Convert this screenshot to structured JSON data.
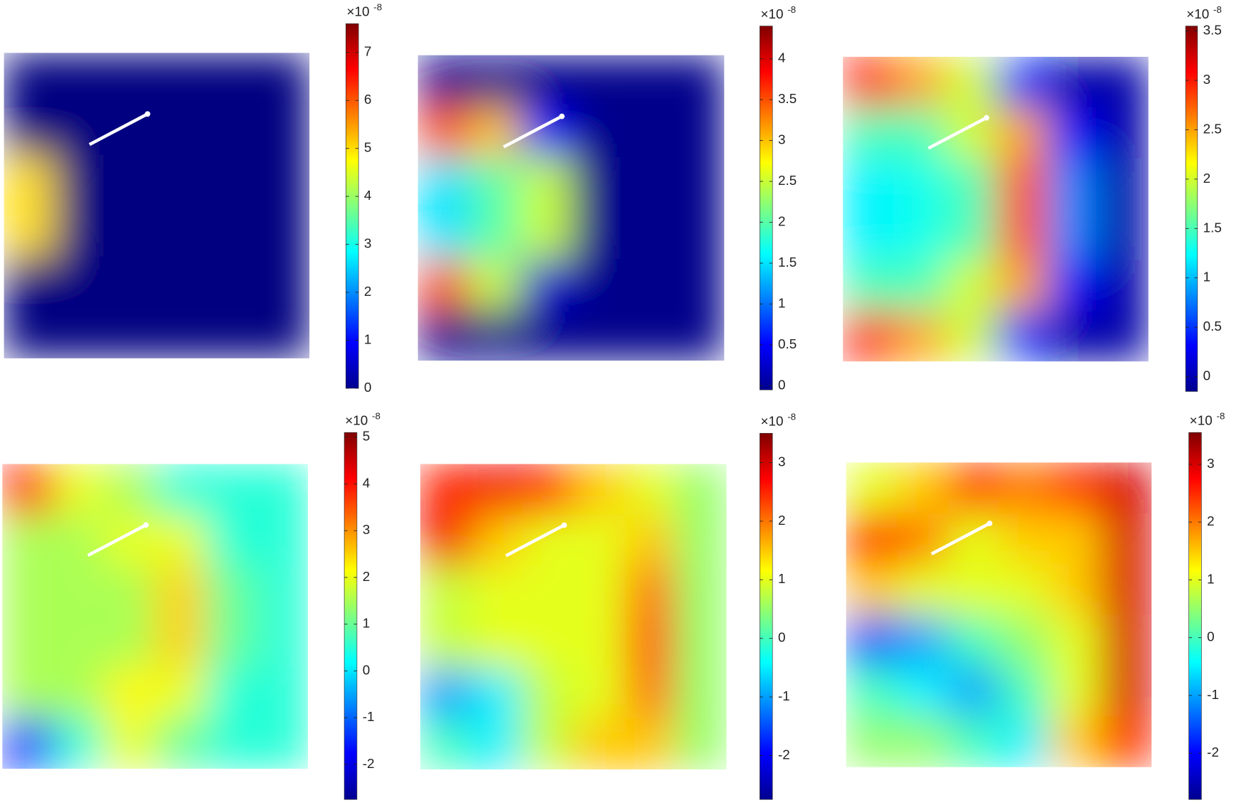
{
  "chart_data": [
    {
      "type": "heatmap",
      "colorbar_label": "×10",
      "colorbar_exponent": "-8",
      "clim": [
        0,
        7.6
      ],
      "cticks": [
        0,
        1,
        2,
        3,
        4,
        5,
        6,
        7
      ],
      "z": [
        [
          0,
          0,
          0,
          0,
          0,
          0
        ],
        [
          0,
          0,
          0,
          0,
          0,
          0
        ],
        [
          5,
          0,
          0,
          0,
          0,
          0
        ],
        [
          5,
          0,
          0,
          0,
          0,
          0
        ],
        [
          0,
          0,
          0,
          0,
          0,
          0
        ],
        [
          0,
          0,
          0,
          0,
          0,
          0
        ]
      ]
    },
    {
      "type": "heatmap",
      "colorbar_label": "×10",
      "colorbar_exponent": "-8",
      "clim": [
        -0.05,
        4.4
      ],
      "cticks": [
        0,
        0.5,
        1,
        1.5,
        2,
        2.5,
        3,
        3.5,
        4
      ],
      "z": [
        [
          0,
          0,
          0,
          0,
          0,
          0
        ],
        [
          3.5,
          3,
          0.5,
          0,
          0,
          0
        ],
        [
          1.5,
          2,
          2.5,
          0,
          0,
          0
        ],
        [
          1.5,
          2,
          2.5,
          0,
          0,
          0
        ],
        [
          3.5,
          2.5,
          0.3,
          0,
          0,
          0
        ],
        [
          0,
          0,
          0,
          0,
          0,
          0
        ]
      ]
    },
    {
      "type": "heatmap",
      "colorbar_label": "×10",
      "colorbar_exponent": "-8",
      "clim": [
        -0.15,
        3.55
      ],
      "cticks": [
        0,
        0.5,
        1,
        1.5,
        2,
        2.5,
        3,
        3.5
      ],
      "z": [
        [
          3,
          2.5,
          2,
          0.5,
          0,
          0
        ],
        [
          1.5,
          1.5,
          2,
          2.5,
          0.3,
          0
        ],
        [
          1.2,
          1.3,
          1.5,
          2.8,
          0.8,
          0
        ],
        [
          1.2,
          1.3,
          1.5,
          2.8,
          0.8,
          0
        ],
        [
          1.5,
          1.5,
          2,
          2.5,
          0.3,
          0
        ],
        [
          3,
          2.5,
          2,
          0.5,
          0,
          0
        ]
      ]
    },
    {
      "type": "heatmap",
      "colorbar_label": "×10",
      "colorbar_exponent": "-8",
      "clim": [
        -2.75,
        5.1
      ],
      "cticks": [
        -2,
        -1,
        0,
        1,
        2,
        3,
        4,
        5
      ],
      "z": [
        [
          4,
          2,
          1.5,
          0.5,
          0.5,
          0.5
        ],
        [
          1.5,
          1.5,
          2,
          2,
          0.5,
          0.5
        ],
        [
          1.5,
          1.5,
          1.5,
          2.5,
          1,
          0.5
        ],
        [
          1.5,
          1.5,
          1.5,
          2.5,
          1,
          0.5
        ],
        [
          1.5,
          1.5,
          2.2,
          2,
          0.5,
          0.5
        ],
        [
          -1.5,
          0.5,
          2,
          1,
          0.5,
          0.5
        ]
      ]
    },
    {
      "type": "heatmap",
      "colorbar_label": "×10",
      "colorbar_exponent": "-8",
      "clim": [
        -2.75,
        3.5
      ],
      "cticks": [
        -2,
        -1,
        0,
        1,
        2,
        3
      ],
      "z": [
        [
          2.5,
          2.8,
          2.5,
          1.5,
          1,
          0.5
        ],
        [
          2.8,
          1.5,
          1,
          1,
          1.5,
          0.5
        ],
        [
          0.8,
          1,
          1,
          1,
          2,
          0.5
        ],
        [
          0.8,
          1,
          1,
          1,
          2.2,
          0.5
        ],
        [
          -1,
          -0.5,
          0.8,
          1,
          2,
          0.5
        ],
        [
          0,
          -0.5,
          0.8,
          1.5,
          1.5,
          0.5
        ]
      ]
    },
    {
      "type": "heatmap",
      "colorbar_label": "×10",
      "colorbar_exponent": "-8",
      "clim": [
        -2.8,
        3.55
      ],
      "cticks": [
        -2,
        -1,
        0,
        1,
        2,
        3
      ],
      "z": [
        [
          1,
          1.5,
          2.5,
          2,
          2.5,
          3
        ],
        [
          2.5,
          2,
          1,
          1.5,
          1.5,
          3
        ],
        [
          1.5,
          1,
          1,
          1,
          1.5,
          3
        ],
        [
          -1.5,
          -1,
          0,
          0.5,
          1,
          3
        ],
        [
          0,
          -0.5,
          -1,
          0,
          1,
          3
        ],
        [
          0.5,
          0.5,
          0,
          -0.5,
          1.5,
          2.5
        ]
      ]
    }
  ]
}
